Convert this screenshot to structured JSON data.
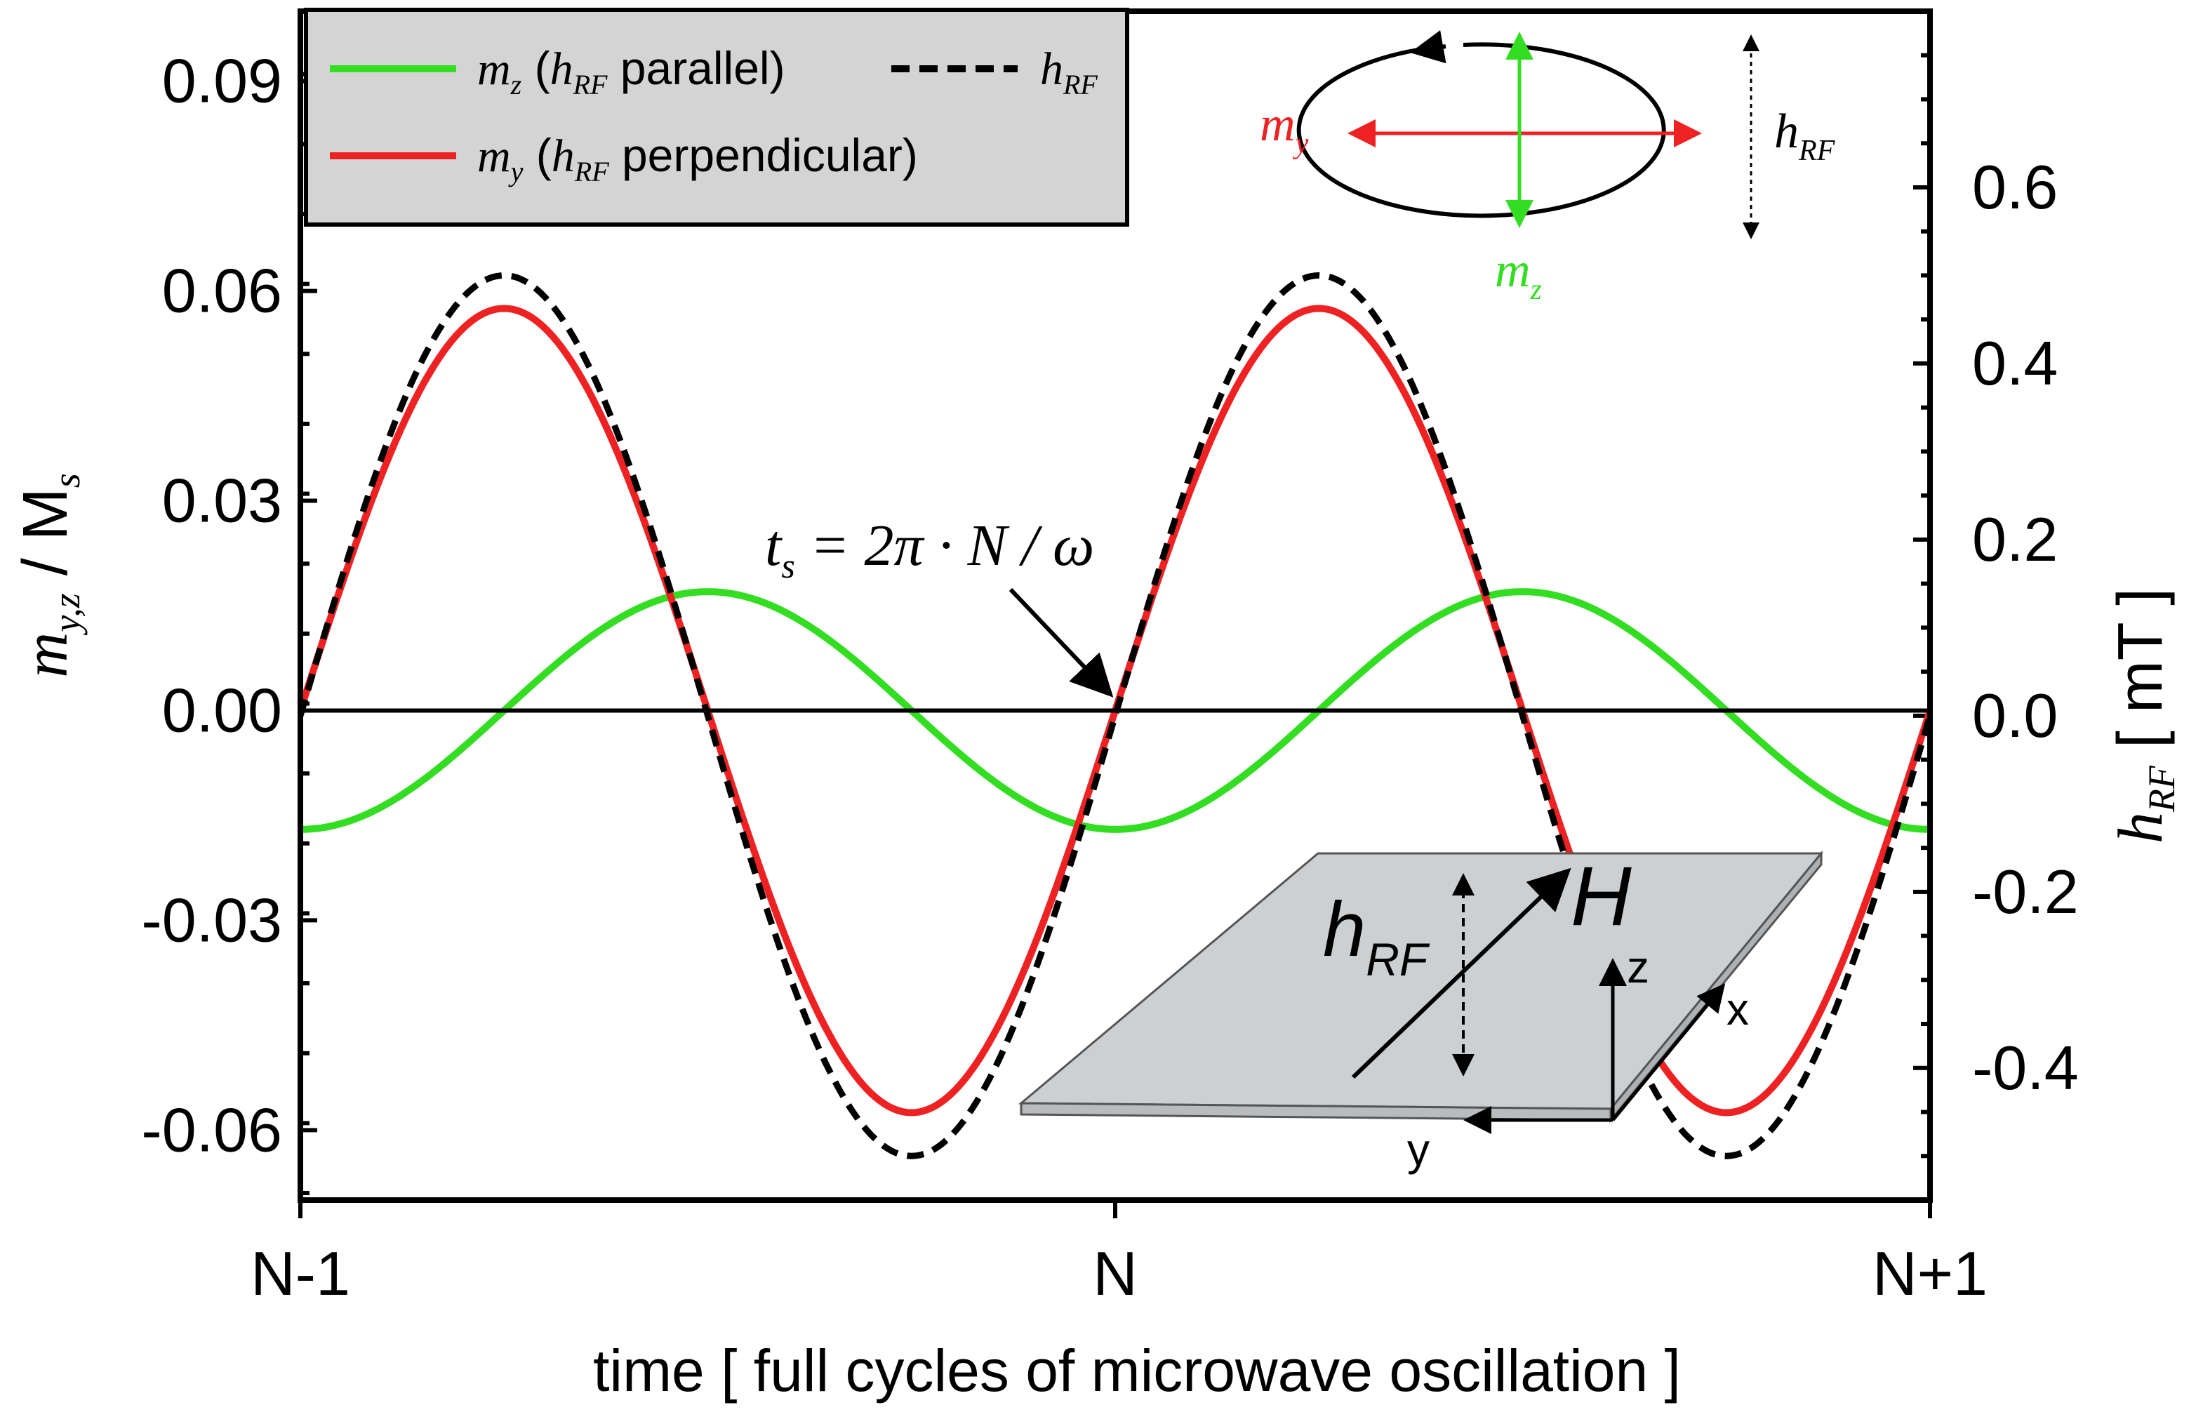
{
  "chart_data": {
    "type": "line",
    "x_axis": {
      "label": "time  [ full cycles of microwave oscillation ]",
      "range": [
        0,
        2
      ],
      "ticks": [
        {
          "value": 0,
          "label": "N-1"
        },
        {
          "value": 1,
          "label": "N"
        },
        {
          "value": 2,
          "label": "N+1"
        }
      ]
    },
    "y_axis_left": {
      "label_main": "m",
      "label_sub": "y,z",
      "label_rest": " / M",
      "label_rest_sub": "s",
      "range": [
        -0.07,
        0.1
      ],
      "ticks": [
        {
          "value": 0.09,
          "label": "0.09"
        },
        {
          "value": 0.06,
          "label": "0.06"
        },
        {
          "value": 0.03,
          "label": "0.03"
        },
        {
          "value": 0.0,
          "label": "0.00"
        },
        {
          "value": -0.03,
          "label": "-0.03"
        },
        {
          "value": -0.06,
          "label": "-0.06"
        }
      ]
    },
    "y_axis_right": {
      "label_main": "h",
      "label_sub": "RF",
      "label_unit": " [ mT ]",
      "range": [
        -0.55,
        0.8
      ],
      "ticks": [
        {
          "value": 0.6,
          "label": "0.6"
        },
        {
          "value": 0.4,
          "label": "0.4"
        },
        {
          "value": 0.2,
          "label": "0.2"
        },
        {
          "value": 0.0,
          "label": "0.0"
        },
        {
          "value": -0.2,
          "label": "-0.2"
        },
        {
          "value": -0.4,
          "label": "-0.4"
        }
      ]
    },
    "series": [
      {
        "name": "m_z (h_RF parallel)",
        "axis": "left",
        "style": "solid",
        "color": "#33dd22",
        "amplitude": 0.017,
        "function": "-amplitude*cos(2*pi*x)"
      },
      {
        "name": "m_y (h_RF perpendicular)",
        "axis": "left",
        "style": "solid",
        "color": "#ee2222",
        "amplitude": 0.0575,
        "function": "amplitude*sin(2*pi*x)"
      },
      {
        "name": "h_RF",
        "axis": "right",
        "style": "dashed",
        "color": "#000000",
        "amplitude": 0.5,
        "function": "amplitude*sin(2*pi*x)"
      }
    ],
    "annotation": {
      "text_t": "t",
      "text_sub": "s",
      "text_eq": " = 2π · N / ω",
      "points_to_x": 1.0
    },
    "legend": {
      "placement": "top-left",
      "entries": [
        {
          "var": "m",
          "var_sub": "z",
          "open": " (",
          "h": "h",
          "h_sub": "RF",
          "tail": " parallel)"
        },
        {
          "var": "m",
          "var_sub": "y",
          "open": " (",
          "h": "h",
          "h_sub": "RF",
          "tail": " perpendicular)"
        },
        {
          "var": "h",
          "var_sub": "RF"
        }
      ]
    },
    "inset_ellipse": {
      "my_label": "m",
      "my_sub": "y",
      "mz_label": "m",
      "mz_sub": "z",
      "h_label": "h",
      "h_sub": "RF"
    },
    "inset_plate": {
      "h_label": "h",
      "h_sub": "RF",
      "H_label": "H",
      "axes": [
        "z",
        "x",
        "y"
      ]
    }
  },
  "colors": {
    "green": "#33dd22",
    "red": "#ee2222",
    "legend_bg": "#d4d4d4",
    "plate": "#cdd0d2"
  }
}
